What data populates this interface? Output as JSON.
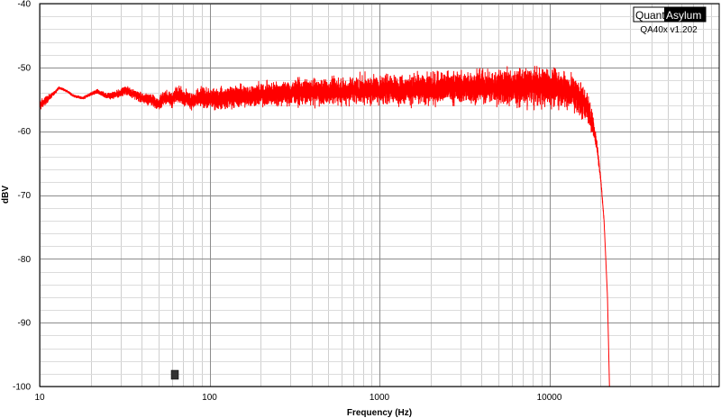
{
  "logo": {
    "quant": "Quant",
    "asylum": "Asylum"
  },
  "version_label": "QA40x v1.202",
  "chart_data": {
    "type": "line",
    "xlabel": "Frequency (Hz)",
    "ylabel": "dBV",
    "x_scale": "log",
    "xlim": [
      10,
      100000
    ],
    "ylim": [
      -100,
      -40
    ],
    "grid": true,
    "x_tick_labels": [
      "10",
      "100",
      "1000",
      "10000"
    ],
    "x_tick_values": [
      10,
      100,
      1000,
      10000
    ],
    "y_tick_labels": [
      "-40",
      "-50",
      "-60",
      "-70",
      "-80",
      "-90",
      "-100"
    ],
    "y_tick_values": [
      -40,
      -50,
      -60,
      -70,
      -80,
      -90,
      -100
    ],
    "series": [
      {
        "color": "#ff0000",
        "x": [
          10,
          12,
          13,
          14,
          16,
          18,
          20,
          22,
          25,
          28,
          32,
          36,
          40,
          45,
          50,
          55,
          60,
          65,
          70,
          80,
          90,
          100,
          120,
          150,
          200,
          300,
          500,
          700,
          1000,
          1500,
          2000,
          3000,
          4000,
          5000,
          6000,
          7000,
          8000,
          10000,
          12000,
          14000,
          15000,
          16000,
          17000,
          18000,
          19000,
          20000,
          21000,
          22000,
          22600
        ],
        "y": [
          -56.0,
          -54.2,
          -53.2,
          -53.5,
          -54.5,
          -54.8,
          -54.2,
          -53.8,
          -54.5,
          -54.3,
          -53.6,
          -54.1,
          -54.9,
          -55.0,
          -55.8,
          -54.6,
          -55.2,
          -54.0,
          -54.8,
          -55.2,
          -54.7,
          -55.0,
          -54.8,
          -54.5,
          -54.3,
          -54.0,
          -53.8,
          -53.6,
          -53.4,
          -53.5,
          -53.3,
          -53.1,
          -53.0,
          -53.1,
          -53.0,
          -53.1,
          -53.0,
          -53.1,
          -53.4,
          -54.0,
          -54.6,
          -55.5,
          -56.8,
          -58.8,
          -62.0,
          -67.0,
          -74.0,
          -86.0,
          -100.0
        ],
        "noise_db": [
          1.0,
          0.3,
          0.2,
          0.2,
          0.2,
          0.2,
          0.3,
          0.4,
          0.5,
          0.6,
          0.7,
          0.8,
          0.9,
          1.0,
          1.1,
          1.2,
          1.3,
          1.4,
          1.5,
          1.6,
          1.7,
          1.8,
          1.9,
          2.0,
          2.1,
          2.2,
          2.3,
          2.4,
          2.5,
          2.6,
          2.7,
          2.8,
          2.9,
          3.0,
          3.1,
          3.2,
          3.2,
          3.3,
          3.3,
          3.3,
          3.2,
          3.0,
          2.6,
          2.0,
          1.3,
          0.7,
          0.3,
          0.1,
          0.0
        ]
      }
    ]
  }
}
